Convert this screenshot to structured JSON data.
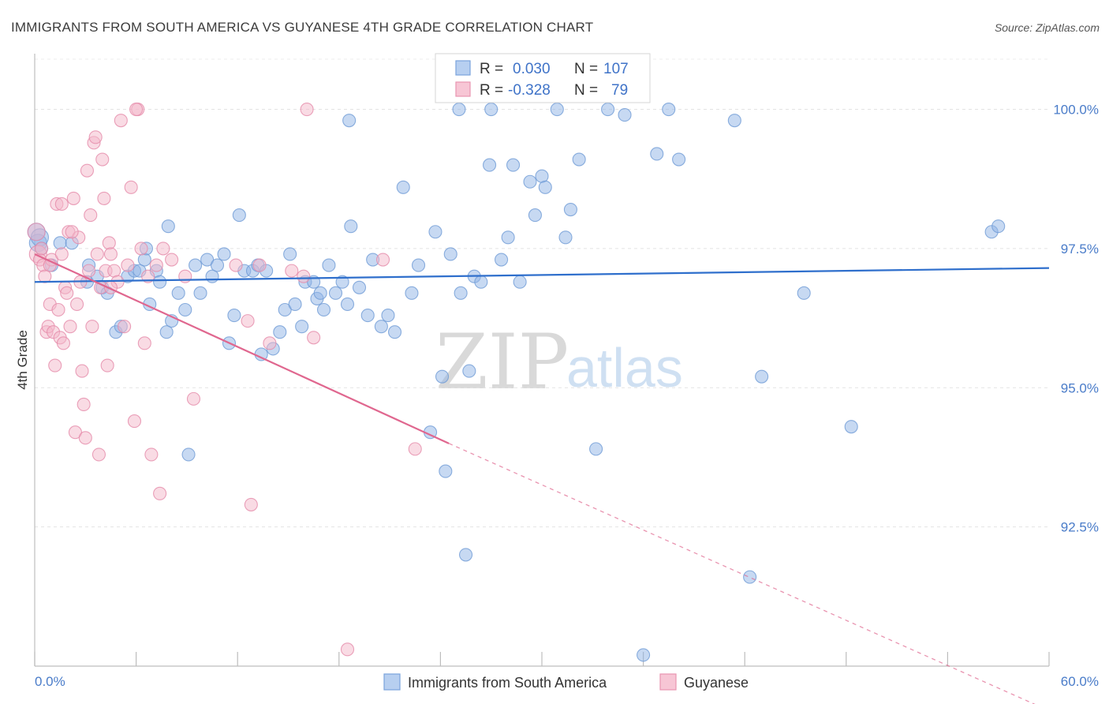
{
  "chart_data": {
    "type": "scatter",
    "title": "IMMIGRANTS FROM SOUTH AMERICA VS GUYANESE 4TH GRADE CORRELATION CHART",
    "source": "Source: ZipAtlas.com",
    "xlabel": "",
    "ylabel": "4th Grade",
    "xlim": [
      0,
      60
    ],
    "ylim": [
      90.0,
      101.0
    ],
    "x_tick_labels": [
      "0.0%",
      "60.0%"
    ],
    "y_ticks": [
      92.5,
      95.0,
      97.5,
      100.0
    ],
    "y_tick_labels": [
      "92.5%",
      "95.0%",
      "97.5%",
      "100.0%"
    ],
    "watermark": {
      "zip": "ZIP",
      "atlas": "atlas"
    },
    "legend": {
      "r_label": "R =",
      "n_label": "N =",
      "rows": [
        {
          "r": "0.030",
          "n": "107"
        },
        {
          "r": "-0.328",
          "n": "79"
        }
      ]
    },
    "series": [
      {
        "name": "Immigrants from South America",
        "color": "#8fb4e6",
        "stroke": "#6f9bd6",
        "trend_color": "#2f6fcc",
        "trend": {
          "x0": 0,
          "y0": 96.9,
          "x1": 60,
          "y1": 97.15
        },
        "points": [
          [
            0.1,
            97.8
          ],
          [
            0.2,
            97.6
          ],
          [
            0.3,
            97.7
          ],
          [
            0.4,
            97.5
          ],
          [
            1.0,
            97.2
          ],
          [
            1.5,
            97.6
          ],
          [
            2.2,
            97.6
          ],
          [
            3.1,
            96.9
          ],
          [
            3.2,
            97.2
          ],
          [
            3.7,
            97.0
          ],
          [
            4.0,
            96.8
          ],
          [
            4.3,
            96.7
          ],
          [
            4.8,
            96.0
          ],
          [
            5.1,
            96.1
          ],
          [
            5.5,
            97.0
          ],
          [
            5.9,
            97.1
          ],
          [
            6.2,
            97.1
          ],
          [
            6.5,
            97.3
          ],
          [
            6.6,
            97.5
          ],
          [
            6.8,
            96.5
          ],
          [
            7.2,
            97.1
          ],
          [
            7.4,
            96.9
          ],
          [
            7.8,
            96.0
          ],
          [
            7.9,
            97.9
          ],
          [
            8.1,
            96.2
          ],
          [
            8.5,
            96.7
          ],
          [
            8.9,
            96.4
          ],
          [
            9.1,
            93.8
          ],
          [
            9.5,
            97.2
          ],
          [
            9.8,
            96.7
          ],
          [
            10.2,
            97.3
          ],
          [
            10.5,
            97.0
          ],
          [
            10.8,
            97.2
          ],
          [
            11.2,
            97.4
          ],
          [
            11.5,
            95.8
          ],
          [
            11.8,
            96.3
          ],
          [
            12.1,
            98.1
          ],
          [
            12.4,
            97.1
          ],
          [
            12.9,
            97.1
          ],
          [
            13.2,
            97.2
          ],
          [
            13.4,
            95.6
          ],
          [
            13.7,
            97.1
          ],
          [
            14.1,
            95.7
          ],
          [
            14.5,
            96.0
          ],
          [
            14.8,
            96.4
          ],
          [
            15.1,
            97.4
          ],
          [
            15.4,
            96.5
          ],
          [
            15.8,
            96.1
          ],
          [
            16.0,
            96.9
          ],
          [
            16.5,
            96.9
          ],
          [
            16.7,
            96.6
          ],
          [
            16.9,
            96.7
          ],
          [
            17.1,
            96.4
          ],
          [
            17.4,
            97.2
          ],
          [
            17.8,
            96.7
          ],
          [
            18.2,
            96.9
          ],
          [
            18.5,
            96.5
          ],
          [
            18.7,
            97.9
          ],
          [
            19.2,
            96.8
          ],
          [
            19.7,
            96.3
          ],
          [
            20.5,
            96.1
          ],
          [
            20.9,
            96.3
          ],
          [
            21.3,
            96.0
          ],
          [
            21.8,
            98.6
          ],
          [
            22.3,
            96.7
          ],
          [
            22.7,
            97.2
          ],
          [
            23.4,
            94.2
          ],
          [
            23.7,
            97.8
          ],
          [
            24.1,
            95.2
          ],
          [
            24.6,
            97.4
          ],
          [
            25.2,
            96.7
          ],
          [
            25.7,
            95.3
          ],
          [
            26.0,
            97.0
          ],
          [
            26.4,
            96.9
          ],
          [
            26.9,
            99.0
          ],
          [
            27.6,
            97.3
          ],
          [
            28.0,
            97.7
          ],
          [
            28.3,
            99.0
          ],
          [
            28.7,
            96.9
          ],
          [
            29.3,
            98.7
          ],
          [
            29.6,
            98.1
          ],
          [
            30.0,
            98.8
          ],
          [
            30.2,
            98.6
          ],
          [
            31.4,
            97.7
          ],
          [
            31.7,
            98.2
          ],
          [
            32.2,
            99.1
          ],
          [
            33.2,
            93.9
          ],
          [
            24.3,
            93.5
          ],
          [
            25.5,
            92.0
          ],
          [
            25.1,
            100.0
          ],
          [
            27.0,
            100.0
          ],
          [
            36.8,
            99.2
          ],
          [
            37.5,
            100.0
          ],
          [
            38.1,
            99.1
          ],
          [
            41.4,
            99.8
          ],
          [
            42.3,
            91.6
          ],
          [
            43.0,
            95.2
          ],
          [
            45.5,
            96.7
          ],
          [
            48.3,
            94.3
          ],
          [
            56.6,
            97.8
          ],
          [
            57.0,
            97.9
          ],
          [
            34.9,
            99.9
          ],
          [
            36.0,
            90.2
          ],
          [
            30.9,
            100.0
          ],
          [
            18.6,
            99.8
          ],
          [
            20.0,
            97.3
          ],
          [
            33.9,
            100.0
          ]
        ]
      },
      {
        "name": "Guyanese",
        "color": "#f4b8ca",
        "stroke": "#e58aa9",
        "trend_color": "#e0678f",
        "trend": {
          "x0": 0,
          "y0": 97.4,
          "x1": 24.5,
          "y1": 94.0
        },
        "trend_dashed": {
          "x0": 24.5,
          "y0": 94.0,
          "x1": 60,
          "y1": 89.2
        },
        "points": [
          [
            0.1,
            97.8
          ],
          [
            0.2,
            97.4
          ],
          [
            0.3,
            97.3
          ],
          [
            0.5,
            97.2
          ],
          [
            0.6,
            97.0
          ],
          [
            0.7,
            96.0
          ],
          [
            0.8,
            96.1
          ],
          [
            0.9,
            96.5
          ],
          [
            1.0,
            97.3
          ],
          [
            1.1,
            96.0
          ],
          [
            1.2,
            95.4
          ],
          [
            1.3,
            98.3
          ],
          [
            1.4,
            96.4
          ],
          [
            1.5,
            95.9
          ],
          [
            1.6,
            97.4
          ],
          [
            1.7,
            95.8
          ],
          [
            1.8,
            96.8
          ],
          [
            1.9,
            96.7
          ],
          [
            2.0,
            97.8
          ],
          [
            2.1,
            96.1
          ],
          [
            2.3,
            98.4
          ],
          [
            2.4,
            94.2
          ],
          [
            2.5,
            96.5
          ],
          [
            2.6,
            97.7
          ],
          [
            2.7,
            96.9
          ],
          [
            2.8,
            95.3
          ],
          [
            2.9,
            94.7
          ],
          [
            3.0,
            94.1
          ],
          [
            3.1,
            98.9
          ],
          [
            3.2,
            97.1
          ],
          [
            3.3,
            98.1
          ],
          [
            3.4,
            96.1
          ],
          [
            3.5,
            99.4
          ],
          [
            3.6,
            99.5
          ],
          [
            3.7,
            97.4
          ],
          [
            3.8,
            93.8
          ],
          [
            3.9,
            96.8
          ],
          [
            4.0,
            99.1
          ],
          [
            4.1,
            98.4
          ],
          [
            4.2,
            97.1
          ],
          [
            4.3,
            95.4
          ],
          [
            4.4,
            97.6
          ],
          [
            4.5,
            97.4
          ],
          [
            4.7,
            97.1
          ],
          [
            4.9,
            96.9
          ],
          [
            5.1,
            99.8
          ],
          [
            5.3,
            96.1
          ],
          [
            5.5,
            97.2
          ],
          [
            5.7,
            98.6
          ],
          [
            5.9,
            94.4
          ],
          [
            6.1,
            100.0
          ],
          [
            6.3,
            97.5
          ],
          [
            6.5,
            95.8
          ],
          [
            6.7,
            97.0
          ],
          [
            6.9,
            93.8
          ],
          [
            7.2,
            97.2
          ],
          [
            7.4,
            93.1
          ],
          [
            7.6,
            97.5
          ],
          [
            8.1,
            97.3
          ],
          [
            8.9,
            97.0
          ],
          [
            9.4,
            94.8
          ],
          [
            11.9,
            97.2
          ],
          [
            12.6,
            96.2
          ],
          [
            12.8,
            92.9
          ],
          [
            13.3,
            97.2
          ],
          [
            13.9,
            95.8
          ],
          [
            15.2,
            97.1
          ],
          [
            15.9,
            97.0
          ],
          [
            16.1,
            100.0
          ],
          [
            16.5,
            95.9
          ],
          [
            18.5,
            90.3
          ],
          [
            20.6,
            97.3
          ],
          [
            22.5,
            93.9
          ],
          [
            1.6,
            98.3
          ],
          [
            0.4,
            97.5
          ],
          [
            0.9,
            97.2
          ],
          [
            2.2,
            97.8
          ],
          [
            6.0,
            100.0
          ],
          [
            4.5,
            96.8
          ]
        ]
      }
    ],
    "bottom_legend": [
      "Immigrants from South America",
      "Guyanese"
    ]
  }
}
